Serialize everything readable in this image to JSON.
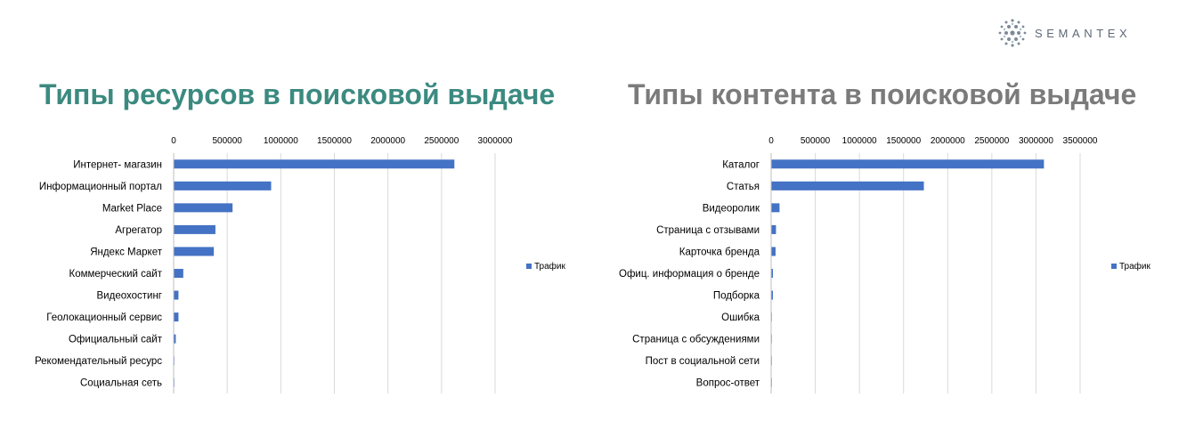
{
  "logo": {
    "text": "SEMANTEX",
    "icon": "dotted-sphere-icon"
  },
  "titles": {
    "left": "Типы ресурсов в поисковой выдаче",
    "right": "Типы контента в поисковой выдаче"
  },
  "colors": {
    "bar": "#4472c4",
    "title_left": "#3b8a80",
    "title_right": "#7b7b7b",
    "grid": "#d9d9d9"
  },
  "chart_data": [
    {
      "type": "bar",
      "orientation": "horizontal",
      "categories": [
        "Интернет- магазин",
        "Информационный портал",
        "Market Place",
        "Агрегатор",
        "Яндекс Маркет",
        "Коммерческий сайт",
        "Видеохостинг",
        "Геолокационный сервис",
        "Официальный сайт",
        "Рекомендательный ресурс",
        "Социальная сеть"
      ],
      "series": [
        {
          "name": "Трафик",
          "values": [
            2620000,
            910000,
            550000,
            390000,
            375000,
            90000,
            45000,
            45000,
            20000,
            5000,
            3000
          ]
        }
      ],
      "xlim": [
        0,
        3000000
      ],
      "xticks": [
        0,
        500000,
        1000000,
        1500000,
        2000000,
        2500000,
        3000000
      ],
      "xtick_labels": [
        "0",
        "500000",
        "1000000",
        "1500000",
        "2000000",
        "2500000",
        "3000000"
      ],
      "axis_position": "top",
      "grid": true,
      "legend": "right"
    },
    {
      "type": "bar",
      "orientation": "horizontal",
      "categories": [
        "Каталог",
        "Статья",
        "Видеоролик",
        "Страница с отзывами",
        "Карточка бренда",
        "Офиц. информация о бренде",
        "Подборка",
        "Ошибка",
        "Страница с обсуждениями",
        "Пост в социальной сети",
        "Вопрос-ответ"
      ],
      "series": [
        {
          "name": "Трафик",
          "values": [
            3090000,
            1730000,
            95000,
            55000,
            50000,
            20000,
            20000,
            5000,
            4000,
            3000,
            2000
          ]
        }
      ],
      "xlim": [
        0,
        3500000
      ],
      "xticks": [
        0,
        500000,
        1000000,
        1500000,
        2000000,
        2500000,
        3000000,
        3500000
      ],
      "xtick_labels": [
        "0",
        "500000",
        "1000000",
        "1500000",
        "2000000",
        "2500000",
        "3000000",
        "3500000"
      ],
      "axis_position": "top",
      "grid": true,
      "legend": "right"
    }
  ]
}
